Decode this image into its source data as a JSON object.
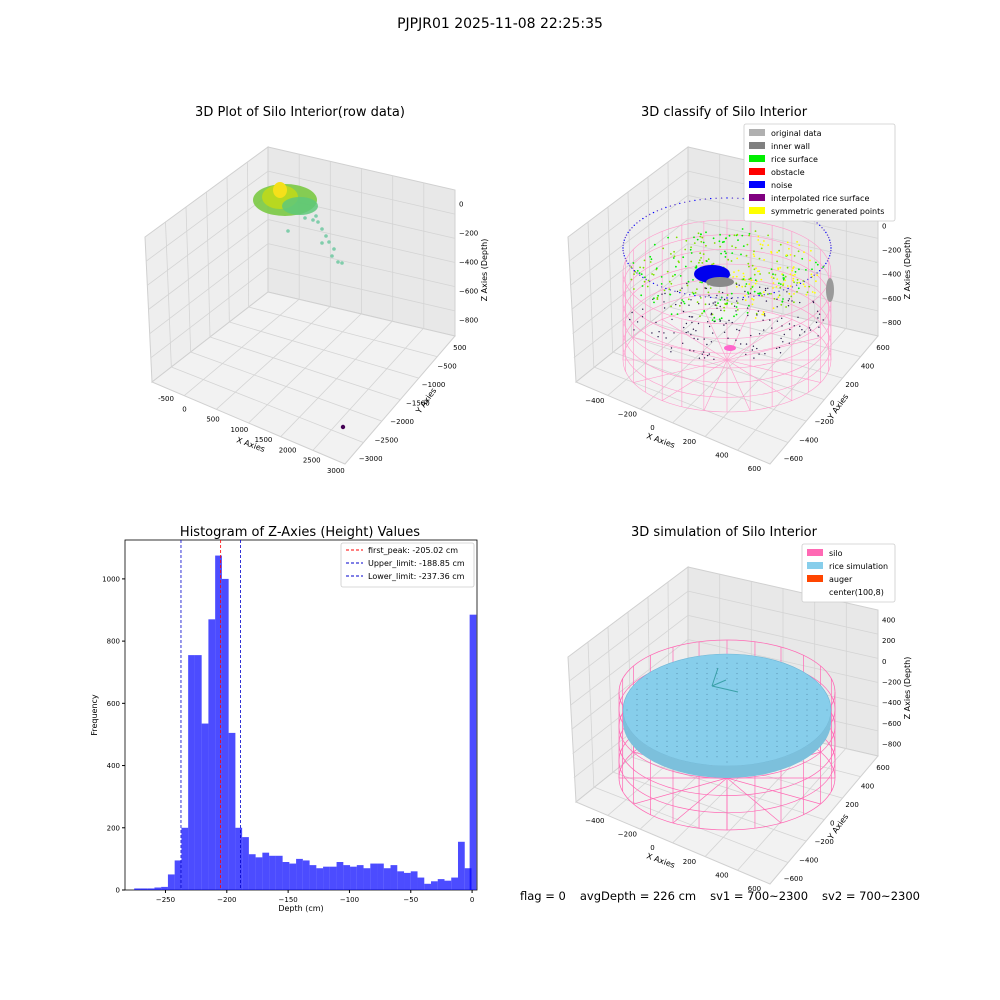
{
  "suptitle": "PJPJR01 2025-11-08 22:25:35",
  "status": {
    "flag": "flag = 0",
    "avg_depth": "avgDepth = 226 cm",
    "sv1": "sv1 = 700~2300",
    "sv2": "sv2 = 700~2300"
  },
  "panels": {
    "raw": {
      "title": "3D Plot of Silo Interior(row data)",
      "xlabel": "X Axies",
      "ylabel": "Y Axies",
      "zlabel": "Z Axies (Depth)",
      "xticks": [
        "-500",
        "0",
        "500",
        "1000",
        "1500",
        "2000",
        "2500",
        "3000"
      ],
      "yticks": [
        "500",
        "−500",
        "−1000",
        "−1500",
        "−2000",
        "−2500",
        "−3000"
      ],
      "zticks": [
        "0",
        "−200",
        "−400",
        "−600",
        "−800"
      ]
    },
    "classify": {
      "title": "3D classify of Silo Interior",
      "xlabel": "X Axies",
      "ylabel": "Y Axies",
      "zlabel": "Z Axies (Depth)",
      "xticks": [
        "−400",
        "−200",
        "0",
        "200",
        "400",
        "600"
      ],
      "yticks": [
        "600",
        "400",
        "200",
        "0",
        "−200",
        "−400",
        "−600"
      ],
      "zticks": [
        "200",
        "0",
        "−200",
        "−400",
        "−600",
        "−800"
      ],
      "legend": [
        {
          "label": "original data",
          "color": "#b0b0b0"
        },
        {
          "label": "inner wall",
          "color": "#808080"
        },
        {
          "label": "rice surface",
          "color": "#00ee00"
        },
        {
          "label": "obstacle",
          "color": "#ff0000"
        },
        {
          "label": "noise",
          "color": "#0000ff"
        },
        {
          "label": "interpolated rice surface",
          "color": "#800080"
        },
        {
          "label": "symmetric generated points",
          "color": "#ffff00"
        }
      ]
    },
    "simulation": {
      "title": "3D simulation of Silo Interior",
      "xlabel": "X Axies",
      "ylabel": "Y Axies",
      "zlabel": "Z Axies (Depth)",
      "xticks": [
        "−400",
        "−200",
        "0",
        "200",
        "400",
        "600"
      ],
      "yticks": [
        "600",
        "400",
        "200",
        "0",
        "−200",
        "−400",
        "−600"
      ],
      "zticks": [
        "400",
        "200",
        "0",
        "−200",
        "−400",
        "−600",
        "−800"
      ],
      "legend": [
        {
          "label": "silo",
          "color": "#ff69b4"
        },
        {
          "label": "rice simulation",
          "color": "#87ceeb"
        },
        {
          "label": "auger",
          "color": "#ff4500"
        },
        {
          "label": "center(100,8)",
          "color": "#ffffff"
        }
      ]
    }
  },
  "chart_data": {
    "type": "bar",
    "title": "Histogram of Z-Axies (Height) Values",
    "xlabel": "Depth (cm)",
    "ylabel": "Frequency",
    "xlim": [
      -283,
      4
    ],
    "ylim": [
      0,
      1125
    ],
    "xticks": [
      -250,
      -200,
      -150,
      -100,
      -50,
      0
    ],
    "yticks": [
      0,
      200,
      400,
      600,
      800,
      1000
    ],
    "bin_width": 5.5,
    "bar_color": "#0000ff",
    "bins_start": [
      -275.5,
      -270,
      -264.5,
      -259,
      -253.5,
      -248,
      -242.5,
      -237,
      -231.5,
      -226,
      -220.5,
      -215,
      -209.5,
      -204,
      -198.5,
      -193,
      -187.5,
      -182,
      -176.5,
      -171,
      -165.5,
      -160,
      -154.5,
      -149,
      -143.5,
      -138,
      -132.5,
      -127,
      -121.5,
      -116,
      -110.5,
      -105,
      -99.5,
      -94,
      -88.5,
      -83,
      -77.5,
      -72,
      -66.5,
      -61,
      -55.5,
      -50,
      -44.5,
      -39,
      -33.5,
      -28,
      -22.5,
      -17,
      -11.5,
      -6
    ],
    "values": [
      5,
      5,
      5,
      8,
      10,
      50,
      95,
      200,
      755,
      755,
      535,
      870,
      1075,
      1000,
      505,
      200,
      170,
      115,
      105,
      120,
      110,
      110,
      90,
      85,
      100,
      95,
      80,
      70,
      75,
      75,
      90,
      80,
      75,
      80,
      70,
      85,
      85,
      70,
      80,
      60,
      55,
      60,
      40,
      20,
      28,
      35,
      30,
      40,
      155,
      70
    ],
    "last_bar": {
      "start": -2,
      "value": 885
    },
    "reference_lines": [
      {
        "label": "first_peak: -205.02 cm",
        "x": -205.02,
        "color": "#ff0000"
      },
      {
        "label": "Upper_limit: -188.85 cm",
        "x": -188.85,
        "color": "#0000cc"
      },
      {
        "label": "Lower_limit: -237.36 cm",
        "x": -237.36,
        "color": "#0000cc"
      }
    ],
    "ytick_labels": [
      "0",
      "200",
      "400",
      "600",
      "800",
      "1000"
    ],
    "xtick_labels": [
      "−250",
      "−200",
      "−150",
      "−100",
      "−50",
      "0"
    ]
  }
}
